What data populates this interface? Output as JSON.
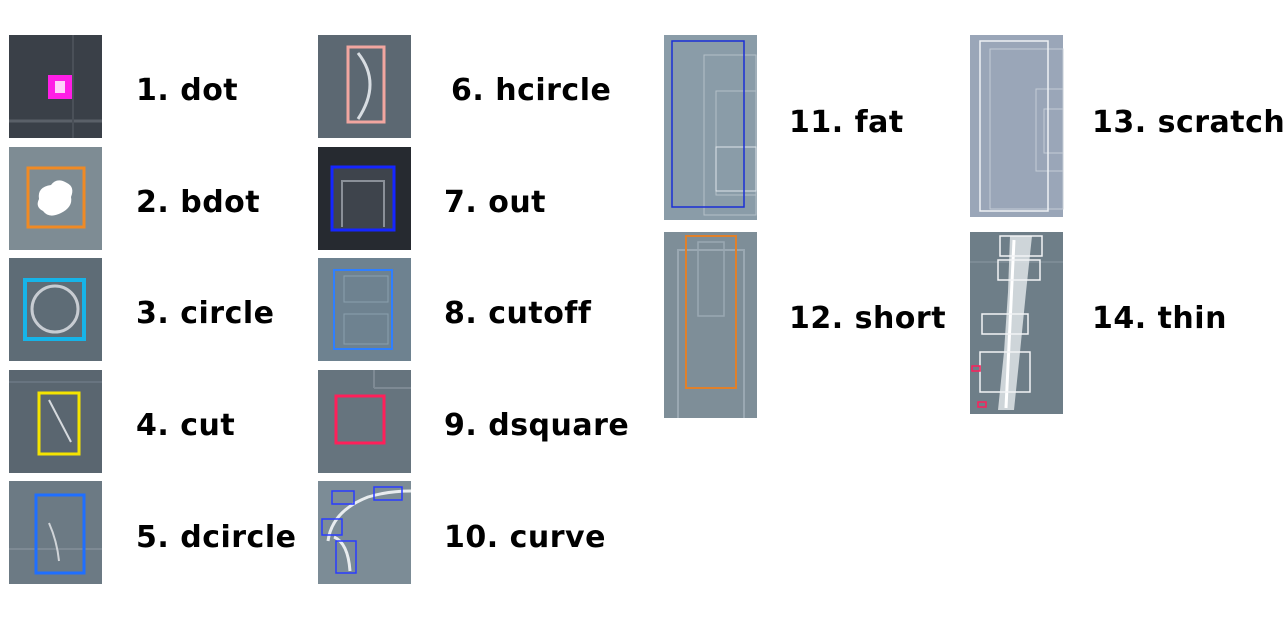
{
  "items": [
    {
      "label": "1. dot",
      "box_color": "#ff00ff"
    },
    {
      "label": "2. bdot",
      "box_color": "#f08a24"
    },
    {
      "label": "3. circle",
      "box_color": "#16b4e8"
    },
    {
      "label": "4. cut",
      "box_color": "#f5e400"
    },
    {
      "label": "5. dcircle",
      "box_color": "#1f6fff"
    },
    {
      "label": "6. hcircle",
      "box_color": "#f2a6a0"
    },
    {
      "label": "7. out",
      "box_color": "#1526ff"
    },
    {
      "label": "8. cutoff",
      "box_color": "#2f7fff"
    },
    {
      "label": "9. dsquare",
      "box_color": "#ff1f5a"
    },
    {
      "label": "10. curve",
      "box_color": "#2a3cff"
    },
    {
      "label": "11. fat",
      "box_color": "#1a2fd6"
    },
    {
      "label": "12. short",
      "box_color": "#e0802a"
    },
    {
      "label": "13. scratch",
      "box_color": "#ffffff"
    },
    {
      "label": "14. thin",
      "box_color": "#ff1f5a"
    }
  ]
}
